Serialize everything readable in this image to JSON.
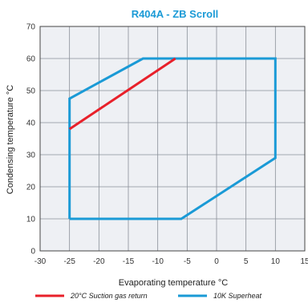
{
  "chart_data": {
    "type": "line",
    "title": "R404A - ZB Scroll",
    "xlabel": "Evaporating temperature °C",
    "ylabel": "Condensing temperature °C",
    "xlim": [
      -30,
      15
    ],
    "ylim": [
      0,
      70
    ],
    "xticks": [
      -30,
      -25,
      -20,
      -15,
      -10,
      -5,
      0,
      5,
      10,
      15
    ],
    "yticks": [
      0,
      10,
      20,
      30,
      40,
      50,
      60,
      70
    ],
    "grid": true,
    "legend_position": "bottom",
    "series": [
      {
        "name": "20°C Suction gas return",
        "color": "#e8202a",
        "points": [
          [
            -25,
            38
          ],
          [
            -7,
            60
          ]
        ]
      },
      {
        "name": "10K Superheat",
        "color": "#1a9ad6",
        "points": [
          [
            -25,
            10
          ],
          [
            -6,
            10
          ],
          [
            10,
            29
          ],
          [
            10,
            60
          ],
          [
            -12.5,
            60
          ],
          [
            -25,
            47.5
          ],
          [
            -25,
            10
          ]
        ]
      }
    ]
  }
}
